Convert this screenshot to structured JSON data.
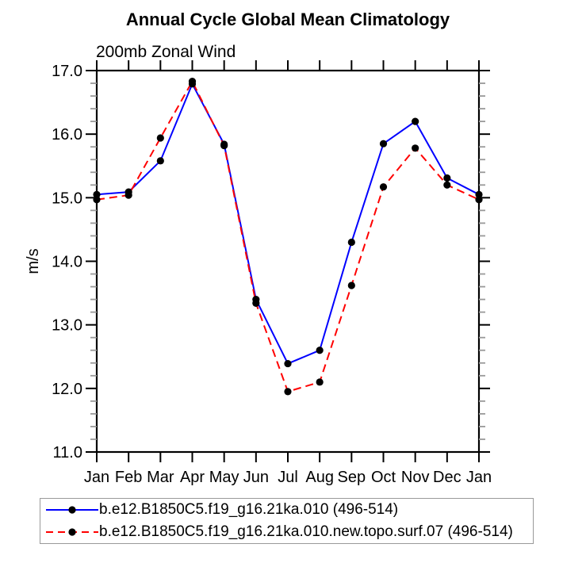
{
  "chart_data": {
    "type": "line",
    "title": "Annual Cycle Global Mean Climatology",
    "subtitle": "200mb Zonal Wind",
    "ylabel": "m/s",
    "xlabel": "",
    "ylim": [
      11.0,
      17.0
    ],
    "ytick_step": 1.0,
    "ytick_minor_step": 0.2,
    "ytick_labels": [
      "11.0",
      "12.0",
      "13.0",
      "14.0",
      "15.0",
      "16.0",
      "17.0"
    ],
    "categories": [
      "Jan",
      "Feb",
      "Mar",
      "Apr",
      "May",
      "Jun",
      "Jul",
      "Aug",
      "Sep",
      "Oct",
      "Nov",
      "Dec",
      "Jan"
    ],
    "series": [
      {
        "name": "b.e12.B1850C5.f19_g16.21ka.010 (496-514)",
        "color": "#0000ff",
        "line_style": "solid",
        "marker": "dot",
        "marker_color": "#000000",
        "values": [
          15.05,
          15.09,
          15.58,
          16.79,
          15.84,
          13.4,
          12.39,
          12.6,
          14.3,
          15.85,
          16.2,
          15.31,
          15.05
        ]
      },
      {
        "name": "b.e12.B1850C5.f19_g16.21ka.010.new.topo.surf.07 (496-514)",
        "color": "#ff0000",
        "line_style": "dashed",
        "marker": "dot",
        "marker_color": "#000000",
        "values": [
          14.97,
          15.04,
          15.94,
          16.83,
          15.82,
          13.34,
          11.95,
          12.1,
          13.62,
          15.17,
          15.78,
          15.2,
          14.97
        ]
      }
    ],
    "legend_position": "bottom-left",
    "grid": false,
    "colors": {
      "axis": "#000000",
      "minor_tick": "#999999",
      "legend_border": "#999999",
      "background": "#ffffff"
    }
  }
}
